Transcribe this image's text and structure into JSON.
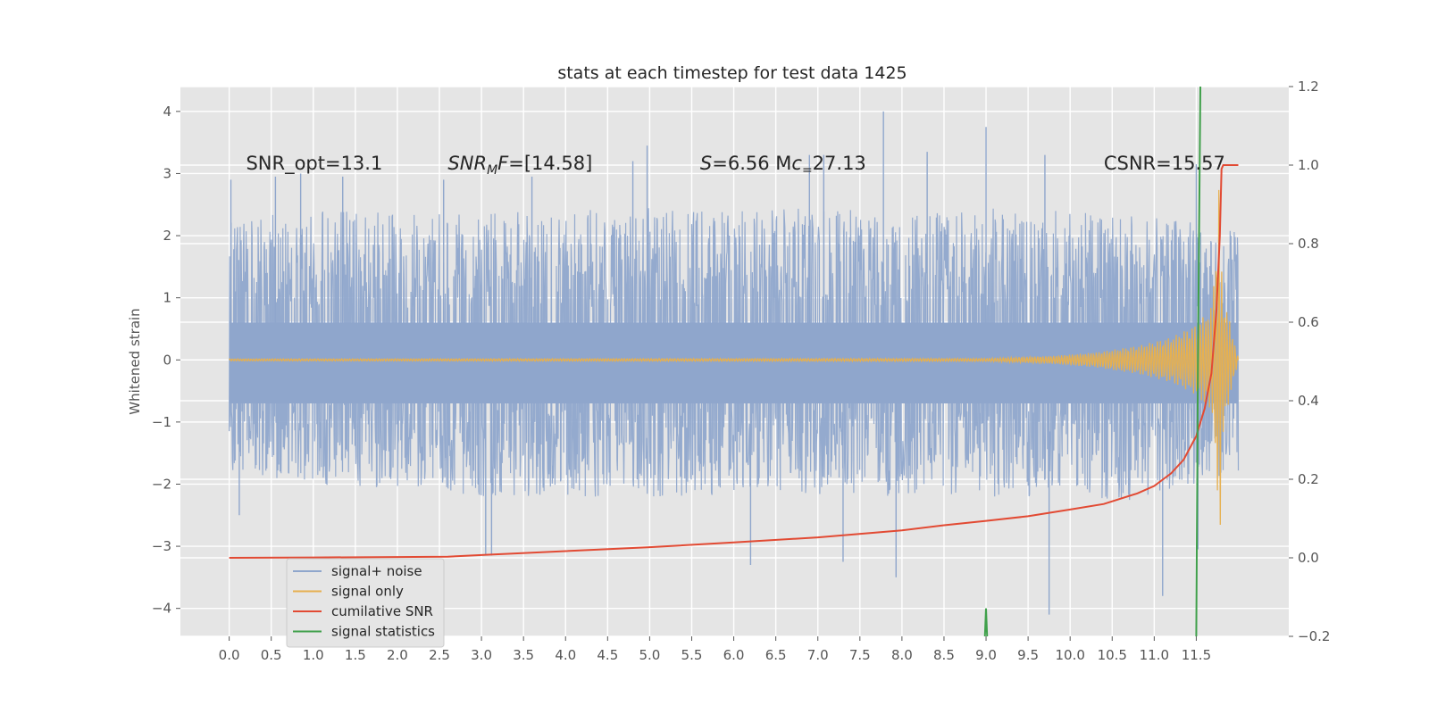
{
  "chart_data": {
    "type": "line",
    "title": "stats at each timestep for test data 1425",
    "ylabel_left": "Whitened strain",
    "ylabel_right": "",
    "xlabel": "",
    "xlim": [
      -0.58,
      12.6
    ],
    "ylim_left": [
      -4.45,
      4.4
    ],
    "ylim_right": [
      -0.2,
      1.2
    ],
    "grid": true,
    "x_ticks": [
      "0.0",
      "0.5",
      "1.0",
      "1.5",
      "2.0",
      "2.5",
      "3.0",
      "3.5",
      "4.0",
      "4.5",
      "5.0",
      "5.5",
      "6.0",
      "6.5",
      "7.0",
      "7.5",
      "8.0",
      "8.5",
      "9.0",
      "9.5",
      "10.0",
      "10.5",
      "11.0",
      "11.5"
    ],
    "y_ticks_left": [
      "−4",
      "−3",
      "−2",
      "−1",
      "0",
      "1",
      "2",
      "3",
      "4"
    ],
    "y_ticks_right": [
      "−0.2",
      "0.0",
      "0.2",
      "0.4",
      "0.6",
      "0.8",
      "1.0",
      "1.2"
    ],
    "annotations": [
      {
        "text": "SNR_opt=13.1",
        "x": 0.2,
        "y": 3.15
      },
      {
        "text": "SNRMF=[14.58]",
        "x": 2.6,
        "y": 3.15
      },
      {
        "text": "S=6.56   Mc=27.13",
        "x": 5.6,
        "y": 3.15
      },
      {
        "text": "CSNR=15.57",
        "x": 10.4,
        "y": 3.15
      }
    ],
    "legend_position": "lower-left",
    "series": [
      {
        "name": "signal+ noise",
        "color": "#8fa6cc",
        "axis": "left",
        "envelope_upper": [
          [
            0.0,
            2.3
          ],
          [
            1.0,
            2.4
          ],
          [
            2.0,
            2.4
          ],
          [
            3.0,
            2.45
          ],
          [
            4.0,
            2.4
          ],
          [
            5.0,
            2.45
          ],
          [
            6.0,
            2.4
          ],
          [
            7.0,
            2.45
          ],
          [
            8.0,
            2.4
          ],
          [
            9.0,
            2.45
          ],
          [
            10.0,
            2.4
          ],
          [
            11.0,
            2.3
          ],
          [
            12.0,
            2.1
          ]
        ],
        "envelope_lower": [
          [
            0.0,
            -1.8
          ],
          [
            1.0,
            -2.0
          ],
          [
            2.0,
            -2.1
          ],
          [
            3.0,
            -2.2
          ],
          [
            4.0,
            -2.2
          ],
          [
            5.0,
            -2.2
          ],
          [
            6.0,
            -2.2
          ],
          [
            7.0,
            -2.2
          ],
          [
            8.0,
            -2.2
          ],
          [
            9.0,
            -2.2
          ],
          [
            10.0,
            -2.2
          ],
          [
            11.0,
            -2.3
          ],
          [
            12.0,
            -1.8
          ]
        ],
        "peaks": [
          [
            0.02,
            2.9
          ],
          [
            0.55,
            2.95
          ],
          [
            0.85,
            3.0
          ],
          [
            1.35,
            2.95
          ],
          [
            2.55,
            2.9
          ],
          [
            3.6,
            2.95
          ],
          [
            4.8,
            3.2
          ],
          [
            4.97,
            3.45
          ],
          [
            6.9,
            3.3
          ],
          [
            7.07,
            3.3
          ],
          [
            7.78,
            4.0
          ],
          [
            8.3,
            3.35
          ],
          [
            9.0,
            3.75
          ],
          [
            9.7,
            3.3
          ],
          [
            11.5,
            3.15
          ]
        ],
        "troughs": [
          [
            0.12,
            -2.5
          ],
          [
            3.05,
            -3.15
          ],
          [
            3.12,
            -3.15
          ],
          [
            6.2,
            -3.3
          ],
          [
            7.3,
            -3.25
          ],
          [
            7.93,
            -3.5
          ],
          [
            9.75,
            -4.1
          ],
          [
            11.1,
            -3.8
          ],
          [
            11.52,
            -3.05
          ]
        ]
      },
      {
        "name": "signal only",
        "color": "#e6b050",
        "axis": "left",
        "envelope": [
          [
            0.0,
            0.02
          ],
          [
            9.0,
            0.03
          ],
          [
            9.8,
            0.08
          ],
          [
            10.3,
            0.15
          ],
          [
            10.8,
            0.28
          ],
          [
            11.2,
            0.45
          ],
          [
            11.5,
            0.7
          ],
          [
            11.7,
            1.1
          ],
          [
            11.78,
            3.1
          ],
          [
            11.8,
            1.5
          ],
          [
            12.0,
            0.02
          ]
        ]
      },
      {
        "name": "cumilative SNR",
        "color": "#e24a33",
        "axis": "right",
        "x": [
          0.0,
          1.0,
          2.0,
          2.6,
          3.0,
          4.0,
          5.0,
          6.0,
          7.0,
          8.0,
          8.5,
          9.0,
          9.5,
          10.0,
          10.4,
          10.8,
          11.0,
          11.2,
          11.35,
          11.5,
          11.6,
          11.68,
          11.74,
          11.78,
          11.8,
          11.82,
          11.9,
          12.0
        ],
        "y": [
          0.0,
          0.001,
          0.002,
          0.003,
          0.007,
          0.017,
          0.027,
          0.039,
          0.052,
          0.07,
          0.083,
          0.094,
          0.106,
          0.123,
          0.137,
          0.164,
          0.183,
          0.215,
          0.25,
          0.31,
          0.38,
          0.47,
          0.63,
          0.82,
          0.99,
          1.0,
          1.0,
          1.0
        ]
      },
      {
        "name": "signal statistics",
        "color": "#348abd",
        "axis": "left",
        "x": [
          8.95,
          8.98,
          9.0,
          9.02,
          9.05,
          11.47,
          11.5,
          11.52,
          11.55
        ],
        "y": [
          -5.0,
          -4.7,
          -4.0,
          -4.7,
          -5.0,
          -5.0,
          -4.5,
          0.0,
          4.5
        ],
        "draw_color": "#3fa04a"
      }
    ]
  },
  "legend": {
    "items": [
      {
        "label": "signal+ noise",
        "color": "#8fa6cc"
      },
      {
        "label": "signal only",
        "color": "#e6b050"
      },
      {
        "label": "cumilative SNR",
        "color": "#e24a33"
      },
      {
        "label": "signal statistics",
        "color": "#3fa04a"
      }
    ]
  }
}
